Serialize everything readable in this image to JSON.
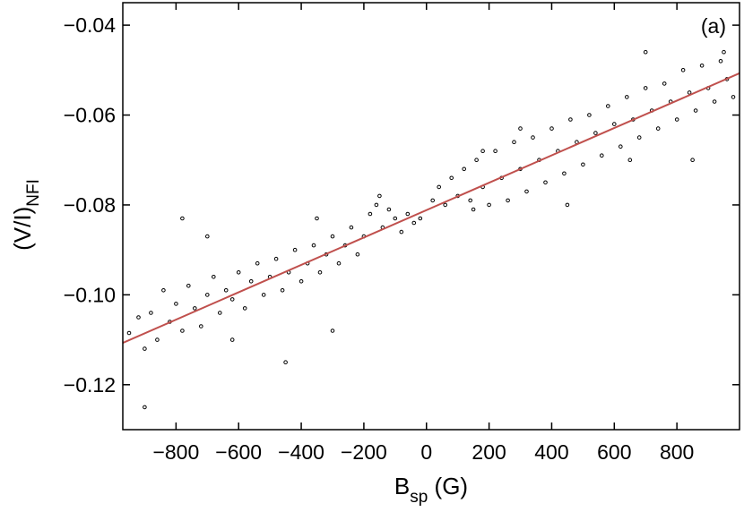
{
  "chart_data": {
    "type": "scatter",
    "panel_label": "(a)",
    "xlabel": {
      "main": "B",
      "sub": "sp",
      "unit": " (G)"
    },
    "ylabel": {
      "main": "(V/I)",
      "sub": "NFI"
    },
    "xlim": [
      -970,
      1000
    ],
    "ylim": [
      -0.13,
      -0.035
    ],
    "xticks": [
      -800,
      -600,
      -400,
      -200,
      0,
      200,
      400,
      600,
      800
    ],
    "xtick_labels": [
      "−800",
      "−600",
      "−400",
      "−200",
      "0",
      "200",
      "400",
      "600",
      "800"
    ],
    "yticks": [
      -0.12,
      -0.1,
      -0.08,
      -0.06,
      -0.04
    ],
    "ytick_labels": [
      "−0.12",
      "−0.10",
      "−0.08",
      "−0.06",
      "−0.04"
    ],
    "grid": false,
    "series": [
      {
        "kind": "scatter",
        "color": "#000000",
        "points": [
          [
            -950,
            -0.1085
          ],
          [
            -920,
            -0.105
          ],
          [
            -900,
            -0.112
          ],
          [
            -880,
            -0.104
          ],
          [
            -860,
            -0.11
          ],
          [
            -840,
            -0.099
          ],
          [
            -820,
            -0.106
          ],
          [
            -800,
            -0.102
          ],
          [
            -780,
            -0.108
          ],
          [
            -760,
            -0.098
          ],
          [
            -740,
            -0.103
          ],
          [
            -720,
            -0.107
          ],
          [
            -700,
            -0.1
          ],
          [
            -680,
            -0.096
          ],
          [
            -660,
            -0.104
          ],
          [
            -640,
            -0.099
          ],
          [
            -620,
            -0.101
          ],
          [
            -600,
            -0.095
          ],
          [
            -580,
            -0.103
          ],
          [
            -560,
            -0.097
          ],
          [
            -540,
            -0.093
          ],
          [
            -520,
            -0.1
          ],
          [
            -500,
            -0.096
          ],
          [
            -480,
            -0.092
          ],
          [
            -460,
            -0.099
          ],
          [
            -440,
            -0.095
          ],
          [
            -420,
            -0.09
          ],
          [
            -400,
            -0.097
          ],
          [
            -380,
            -0.093
          ],
          [
            -360,
            -0.089
          ],
          [
            -340,
            -0.095
          ],
          [
            -320,
            -0.091
          ],
          [
            -300,
            -0.087
          ],
          [
            -280,
            -0.093
          ],
          [
            -260,
            -0.089
          ],
          [
            -240,
            -0.085
          ],
          [
            -220,
            -0.091
          ],
          [
            -200,
            -0.087
          ],
          [
            -180,
            -0.082
          ],
          [
            -160,
            -0.08
          ],
          [
            -140,
            -0.085
          ],
          [
            -120,
            -0.081
          ],
          [
            -100,
            -0.083
          ],
          [
            -80,
            -0.086
          ],
          [
            -60,
            -0.082
          ],
          [
            -40,
            -0.084
          ],
          [
            -20,
            -0.083
          ],
          [
            20,
            -0.079
          ],
          [
            40,
            -0.076
          ],
          [
            60,
            -0.08
          ],
          [
            80,
            -0.074
          ],
          [
            100,
            -0.078
          ],
          [
            120,
            -0.072
          ],
          [
            140,
            -0.079
          ],
          [
            160,
            -0.07
          ],
          [
            180,
            -0.076
          ],
          [
            200,
            -0.08
          ],
          [
            220,
            -0.068
          ],
          [
            240,
            -0.074
          ],
          [
            260,
            -0.079
          ],
          [
            280,
            -0.066
          ],
          [
            300,
            -0.072
          ],
          [
            320,
            -0.077
          ],
          [
            340,
            -0.065
          ],
          [
            360,
            -0.07
          ],
          [
            380,
            -0.075
          ],
          [
            400,
            -0.063
          ],
          [
            420,
            -0.068
          ],
          [
            440,
            -0.073
          ],
          [
            460,
            -0.061
          ],
          [
            480,
            -0.066
          ],
          [
            500,
            -0.071
          ],
          [
            520,
            -0.06
          ],
          [
            540,
            -0.064
          ],
          [
            560,
            -0.069
          ],
          [
            580,
            -0.058
          ],
          [
            600,
            -0.062
          ],
          [
            620,
            -0.067
          ],
          [
            640,
            -0.056
          ],
          [
            660,
            -0.061
          ],
          [
            680,
            -0.065
          ],
          [
            700,
            -0.054
          ],
          [
            720,
            -0.059
          ],
          [
            740,
            -0.063
          ],
          [
            760,
            -0.053
          ],
          [
            780,
            -0.057
          ],
          [
            800,
            -0.061
          ],
          [
            820,
            -0.05
          ],
          [
            840,
            -0.055
          ],
          [
            860,
            -0.059
          ],
          [
            880,
            -0.049
          ],
          [
            900,
            -0.054
          ],
          [
            920,
            -0.057
          ],
          [
            940,
            -0.048
          ],
          [
            960,
            -0.052
          ],
          [
            980,
            -0.056
          ],
          [
            -900,
            -0.125
          ],
          [
            -780,
            -0.083
          ],
          [
            -700,
            -0.087
          ],
          [
            -450,
            -0.115
          ],
          [
            -300,
            -0.108
          ],
          [
            -150,
            -0.078
          ],
          [
            150,
            -0.081
          ],
          [
            300,
            -0.063
          ],
          [
            450,
            -0.08
          ],
          [
            700,
            -0.046
          ],
          [
            850,
            -0.07
          ],
          [
            950,
            -0.046
          ],
          [
            -620,
            -0.11
          ],
          [
            -350,
            -0.083
          ],
          [
            650,
            -0.07
          ],
          [
            180,
            -0.068
          ]
        ]
      },
      {
        "kind": "line",
        "color": "#c0504d",
        "x": [
          -970,
          1000
        ],
        "y": [
          -0.1107,
          -0.0507
        ]
      }
    ]
  }
}
